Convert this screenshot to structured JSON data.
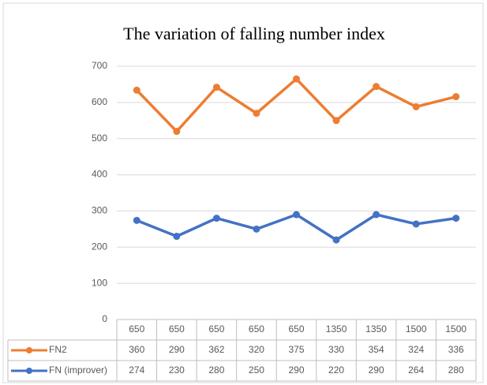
{
  "chart_data": {
    "type": "line",
    "stacked": true,
    "title": "The variation of falling number index",
    "categories": [
      650,
      650,
      650,
      650,
      650,
      1350,
      1350,
      1500,
      1500
    ],
    "series": [
      {
        "name": "FN2",
        "color": "#ed7d31",
        "values": [
          360,
          290,
          362,
          320,
          375,
          330,
          354,
          324,
          336
        ]
      },
      {
        "name": "FN (improver)",
        "color": "#4472c4",
        "values": [
          274,
          230,
          280,
          250,
          290,
          220,
          290,
          264,
          280
        ]
      }
    ],
    "ylim": [
      0,
      700
    ],
    "yticks": [
      0,
      100,
      200,
      300,
      400,
      500,
      600,
      700
    ],
    "grid": true,
    "data_table": true
  }
}
